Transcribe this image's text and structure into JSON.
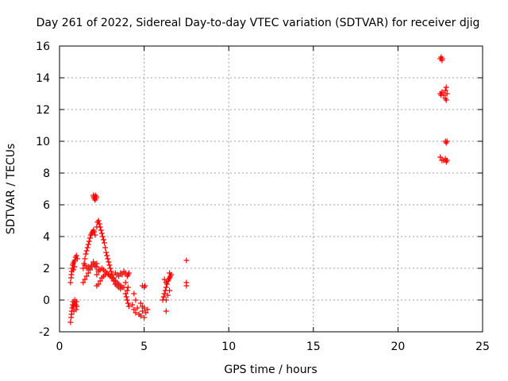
{
  "chart_data": {
    "type": "scatter",
    "title": "Day 261 of 2022, Sidereal Day-to-day VTEC variation (SDTVAR) for receiver djig",
    "xlabel": "GPS time / hours",
    "ylabel": "SDTVAR / TECUs",
    "xlim": [
      0,
      25
    ],
    "ylim": [
      -2,
      16
    ],
    "xticks": [
      0,
      5,
      10,
      15,
      20,
      25
    ],
    "yticks": [
      -2,
      0,
      2,
      4,
      6,
      8,
      10,
      12,
      14,
      16
    ],
    "grid": true,
    "marker": "plus",
    "color": "#ff0000",
    "series": [
      {
        "name": "SDTVAR",
        "points": [
          [
            0.65,
            -1.4
          ],
          [
            0.68,
            -1.1
          ],
          [
            0.7,
            -0.9
          ],
          [
            0.72,
            -0.7
          ],
          [
            0.75,
            -0.5
          ],
          [
            0.78,
            -0.3
          ],
          [
            0.8,
            -0.1
          ],
          [
            0.82,
            -0.4
          ],
          [
            0.85,
            -0.7
          ],
          [
            0.88,
            -0.2
          ],
          [
            0.9,
            0.0
          ],
          [
            0.95,
            -0.3
          ],
          [
            0.98,
            -0.6
          ],
          [
            1.0,
            -0.1
          ],
          [
            1.02,
            -0.4
          ],
          [
            0.65,
            1.1
          ],
          [
            0.68,
            1.4
          ],
          [
            0.7,
            1.6
          ],
          [
            0.72,
            1.8
          ],
          [
            0.75,
            2.0
          ],
          [
            0.78,
            2.2
          ],
          [
            0.8,
            2.3
          ],
          [
            0.85,
            2.4
          ],
          [
            0.9,
            2.5
          ],
          [
            0.95,
            2.7
          ],
          [
            1.0,
            2.8
          ],
          [
            1.05,
            2.6
          ],
          [
            0.82,
            1.9
          ],
          [
            0.88,
            2.1
          ],
          [
            1.4,
            1.1
          ],
          [
            1.5,
            1.3
          ],
          [
            1.6,
            1.5
          ],
          [
            1.7,
            1.7
          ],
          [
            1.8,
            1.9
          ],
          [
            1.9,
            2.1
          ],
          [
            2.0,
            2.3
          ],
          [
            2.1,
            2.2
          ],
          [
            2.2,
            2.1
          ],
          [
            2.3,
            1.9
          ],
          [
            1.4,
            2.0
          ],
          [
            1.45,
            2.3
          ],
          [
            1.5,
            2.6
          ],
          [
            1.55,
            2.9
          ],
          [
            1.6,
            3.1
          ],
          [
            1.65,
            3.3
          ],
          [
            1.7,
            3.5
          ],
          [
            1.75,
            3.7
          ],
          [
            1.8,
            3.9
          ],
          [
            1.85,
            4.1
          ],
          [
            1.9,
            4.2
          ],
          [
            1.95,
            4.3
          ],
          [
            2.0,
            4.4
          ],
          [
            2.05,
            4.3
          ],
          [
            2.1,
            4.1
          ],
          [
            1.5,
            2.2
          ],
          [
            1.6,
            2.0
          ],
          [
            1.7,
            2.1
          ],
          [
            1.8,
            2.0
          ],
          [
            1.9,
            2.2
          ],
          [
            2.0,
            2.4
          ],
          [
            2.1,
            2.1
          ],
          [
            2.2,
            2.3
          ],
          [
            2.0,
            6.6
          ],
          [
            2.02,
            6.5
          ],
          [
            2.05,
            6.4
          ],
          [
            2.08,
            6.5
          ],
          [
            2.1,
            6.3
          ],
          [
            2.12,
            6.6
          ],
          [
            2.15,
            6.4
          ],
          [
            2.18,
            6.5
          ],
          [
            2.2,
            4.6
          ],
          [
            2.25,
            4.9
          ],
          [
            2.3,
            5.0
          ],
          [
            2.35,
            4.8
          ],
          [
            2.4,
            4.6
          ],
          [
            2.45,
            4.4
          ],
          [
            2.5,
            4.2
          ],
          [
            2.55,
            4.0
          ],
          [
            2.6,
            3.8
          ],
          [
            2.65,
            3.6
          ],
          [
            2.7,
            3.3
          ],
          [
            2.75,
            3.0
          ],
          [
            2.8,
            2.8
          ],
          [
            2.85,
            2.6
          ],
          [
            2.9,
            2.4
          ],
          [
            2.95,
            2.2
          ],
          [
            3.0,
            2.0
          ],
          [
            3.05,
            1.8
          ],
          [
            3.1,
            1.6
          ],
          [
            3.2,
            1.4
          ],
          [
            3.3,
            1.2
          ],
          [
            3.4,
            1.0
          ],
          [
            2.2,
            1.6
          ],
          [
            2.3,
            1.8
          ],
          [
            2.4,
            1.9
          ],
          [
            2.5,
            2.0
          ],
          [
            2.6,
            1.9
          ],
          [
            2.7,
            1.8
          ],
          [
            2.8,
            1.7
          ],
          [
            2.9,
            1.6
          ],
          [
            3.0,
            1.5
          ],
          [
            3.1,
            1.4
          ],
          [
            3.2,
            1.3
          ],
          [
            3.3,
            1.2
          ],
          [
            3.4,
            1.1
          ],
          [
            3.5,
            1.0
          ],
          [
            3.6,
            0.9
          ],
          [
            3.7,
            0.8
          ],
          [
            3.8,
            0.8
          ],
          [
            2.2,
            0.9
          ],
          [
            2.3,
            1.0
          ],
          [
            2.4,
            1.2
          ],
          [
            2.5,
            1.4
          ],
          [
            2.6,
            1.5
          ],
          [
            2.7,
            1.6
          ],
          [
            2.8,
            1.7
          ],
          [
            2.9,
            1.6
          ],
          [
            3.0,
            1.5
          ],
          [
            3.1,
            1.4
          ],
          [
            3.2,
            1.2
          ],
          [
            3.3,
            1.0
          ],
          [
            3.4,
            0.9
          ],
          [
            3.5,
            0.8
          ],
          [
            3.6,
            0.7
          ],
          [
            3.3,
            1.7
          ],
          [
            3.4,
            1.6
          ],
          [
            3.5,
            1.5
          ],
          [
            3.6,
            1.7
          ],
          [
            3.7,
            1.6
          ],
          [
            3.8,
            1.8
          ],
          [
            3.9,
            1.7
          ],
          [
            4.0,
            1.5
          ],
          [
            4.05,
            1.6
          ],
          [
            4.1,
            1.7
          ],
          [
            3.9,
            0.4
          ],
          [
            3.95,
            0.2
          ],
          [
            4.0,
            0.0
          ],
          [
            4.05,
            -0.2
          ],
          [
            4.1,
            -0.4
          ],
          [
            4.0,
            0.6
          ],
          [
            4.05,
            0.8
          ],
          [
            3.9,
            1.1
          ],
          [
            4.3,
            -0.3
          ],
          [
            4.4,
            -0.6
          ],
          [
            4.5,
            -0.8
          ],
          [
            4.6,
            -0.5
          ],
          [
            4.7,
            -0.9
          ],
          [
            4.8,
            -1.0
          ],
          [
            4.9,
            -0.7
          ],
          [
            5.0,
            -0.5
          ],
          [
            5.1,
            -0.8
          ],
          [
            5.2,
            -0.6
          ],
          [
            5.0,
            -1.1
          ],
          [
            4.4,
            0.4
          ],
          [
            4.5,
            0.0
          ],
          [
            4.9,
            0.9
          ],
          [
            5.0,
            0.8
          ],
          [
            5.05,
            0.9
          ],
          [
            4.8,
            -0.2
          ],
          [
            4.9,
            -0.4
          ],
          [
            6.1,
            0.0
          ],
          [
            6.15,
            0.2
          ],
          [
            6.2,
            0.4
          ],
          [
            6.25,
            0.6
          ],
          [
            6.3,
            0.8
          ],
          [
            6.35,
            1.0
          ],
          [
            6.4,
            1.2
          ],
          [
            6.45,
            1.3
          ],
          [
            6.5,
            1.4
          ],
          [
            6.55,
            1.5
          ],
          [
            6.6,
            1.6
          ],
          [
            6.3,
            0.0
          ],
          [
            6.4,
            0.3
          ],
          [
            6.5,
            0.6
          ],
          [
            6.2,
            1.3
          ],
          [
            6.3,
            1.1
          ],
          [
            6.5,
            1.7
          ],
          [
            6.3,
            -0.7
          ],
          [
            7.5,
            2.5
          ],
          [
            7.5,
            1.1
          ],
          [
            7.5,
            0.9
          ],
          [
            22.5,
            15.2
          ],
          [
            22.55,
            15.3
          ],
          [
            22.6,
            15.1
          ],
          [
            22.62,
            15.2
          ],
          [
            22.5,
            13.0
          ],
          [
            22.55,
            12.9
          ],
          [
            22.6,
            13.1
          ],
          [
            22.7,
            12.9
          ],
          [
            22.8,
            13.2
          ],
          [
            22.85,
            13.4
          ],
          [
            22.8,
            12.7
          ],
          [
            22.85,
            12.6
          ],
          [
            22.9,
            13.0
          ],
          [
            22.5,
            9.0
          ],
          [
            22.6,
            8.8
          ],
          [
            22.7,
            8.8
          ],
          [
            22.8,
            8.9
          ],
          [
            22.85,
            8.7
          ],
          [
            22.9,
            8.8
          ],
          [
            22.8,
            10.0
          ],
          [
            22.85,
            9.9
          ],
          [
            22.9,
            10.0
          ]
        ]
      }
    ]
  }
}
